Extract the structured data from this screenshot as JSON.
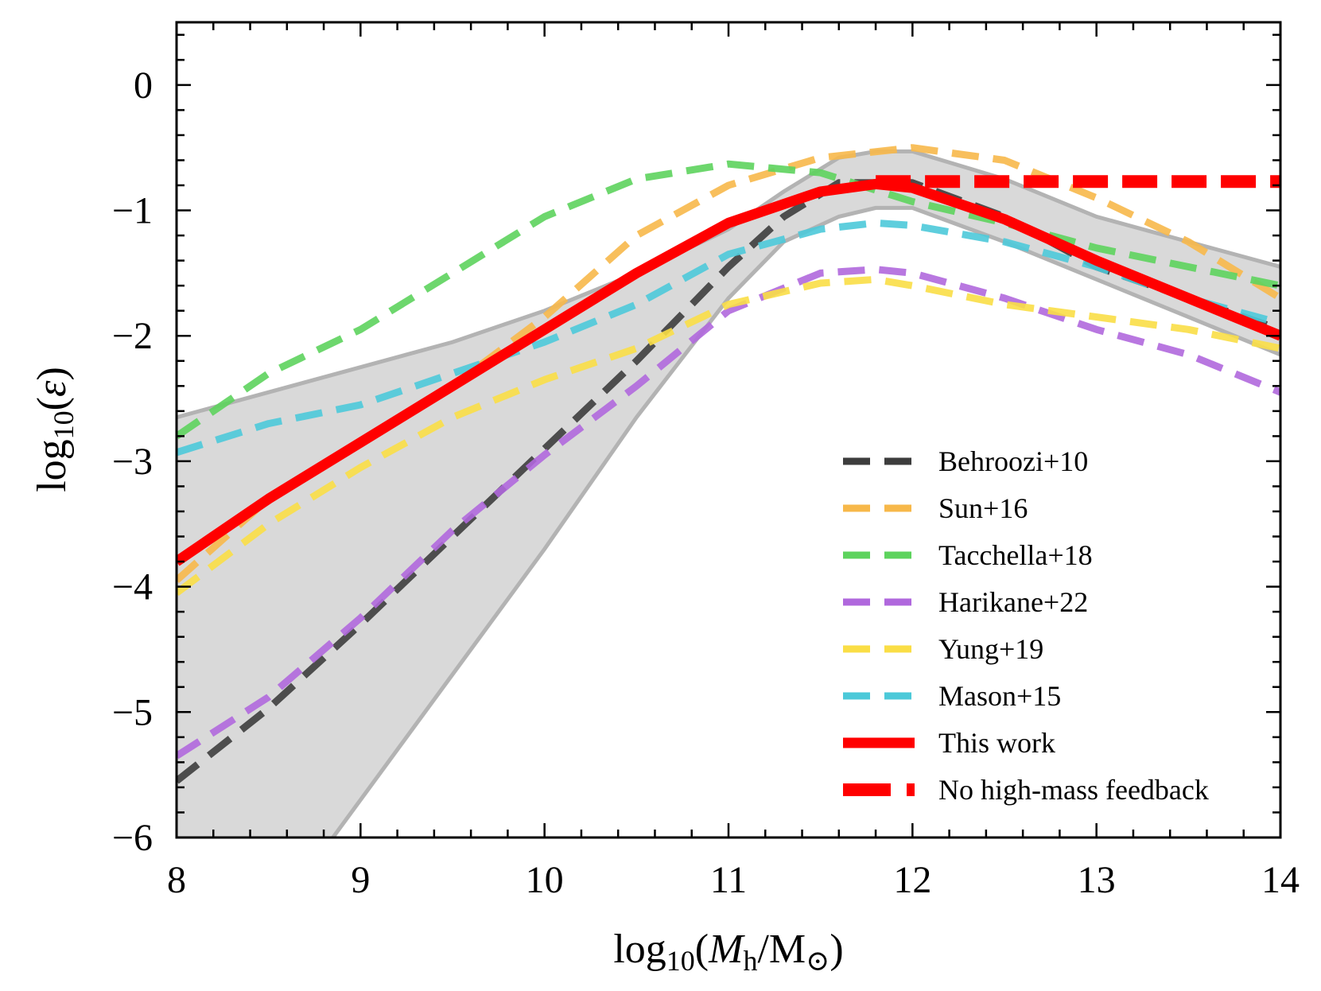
{
  "chart_data": {
    "type": "line",
    "xlabel": "log10(Mh/M⊙)",
    "ylabel": "log10(ε)",
    "xlim": [
      8,
      14
    ],
    "ylim": [
      -6,
      0.5
    ],
    "x_ticks": [
      8,
      9,
      10,
      11,
      12,
      13,
      14
    ],
    "y_ticks": [
      0,
      -1,
      -2,
      -3,
      -4,
      -5,
      -6
    ],
    "x_tick_labels": [
      "8",
      "9",
      "10",
      "11",
      "12",
      "13",
      "14"
    ],
    "y_tick_labels": [
      "0",
      "−1",
      "−2",
      "−3",
      "−4",
      "−5",
      "−6"
    ],
    "legend_position": "lower-right",
    "band": {
      "color": "#d9d9d9",
      "upper": [
        [
          8,
          -2.65
        ],
        [
          8.5,
          -2.45
        ],
        [
          9,
          -2.25
        ],
        [
          9.5,
          -2.05
        ],
        [
          10,
          -1.8
        ],
        [
          10.5,
          -1.5
        ],
        [
          11,
          -1.15
        ],
        [
          11.3,
          -0.85
        ],
        [
          11.6,
          -0.58
        ],
        [
          11.8,
          -0.53
        ],
        [
          12.0,
          -0.53
        ],
        [
          12.5,
          -0.75
        ],
        [
          13,
          -1.05
        ],
        [
          13.5,
          -1.25
        ],
        [
          14,
          -1.45
        ]
      ],
      "lower": [
        [
          8.85,
          -6.0
        ],
        [
          9.5,
          -4.7
        ],
        [
          10,
          -3.7
        ],
        [
          10.5,
          -2.65
        ],
        [
          11,
          -1.7
        ],
        [
          11.3,
          -1.25
        ],
        [
          11.6,
          -1.05
        ],
        [
          11.8,
          -0.98
        ],
        [
          12.0,
          -0.98
        ],
        [
          12.5,
          -1.25
        ],
        [
          13,
          -1.55
        ],
        [
          13.5,
          -1.85
        ],
        [
          14,
          -2.15
        ]
      ]
    },
    "series": [
      {
        "name": "Behroozi+10",
        "color": "#3d3d3d",
        "style": "dashed",
        "points": [
          [
            8,
            -5.55
          ],
          [
            8.5,
            -4.97
          ],
          [
            9,
            -4.3
          ],
          [
            9.5,
            -3.6
          ],
          [
            10,
            -2.9
          ],
          [
            10.5,
            -2.2
          ],
          [
            11,
            -1.45
          ],
          [
            11.3,
            -1.05
          ],
          [
            11.6,
            -0.78
          ],
          [
            12,
            -0.78
          ],
          [
            12.5,
            -1.05
          ],
          [
            13,
            -1.45
          ],
          [
            13.5,
            -1.7
          ],
          [
            14,
            -1.95
          ]
        ]
      },
      {
        "name": "Sun+16",
        "color": "#f7b84a",
        "style": "dashed",
        "points": [
          [
            8,
            -3.95
          ],
          [
            8.5,
            -3.3
          ],
          [
            9,
            -2.85
          ],
          [
            9.5,
            -2.4
          ],
          [
            10,
            -1.85
          ],
          [
            10.5,
            -1.2
          ],
          [
            11,
            -0.8
          ],
          [
            11.5,
            -0.58
          ],
          [
            12,
            -0.5
          ],
          [
            12.5,
            -0.6
          ],
          [
            13,
            -0.9
          ],
          [
            13.5,
            -1.25
          ],
          [
            14,
            -1.7
          ]
        ]
      },
      {
        "name": "Tacchella+18",
        "color": "#5dd35d",
        "style": "dashed",
        "points": [
          [
            8,
            -2.8
          ],
          [
            8.5,
            -2.3
          ],
          [
            9,
            -1.95
          ],
          [
            9.5,
            -1.5
          ],
          [
            10,
            -1.05
          ],
          [
            10.5,
            -0.75
          ],
          [
            11,
            -0.63
          ],
          [
            11.5,
            -0.7
          ],
          [
            12,
            -0.93
          ],
          [
            12.5,
            -1.1
          ],
          [
            13,
            -1.3
          ],
          [
            13.5,
            -1.45
          ],
          [
            14,
            -1.6
          ]
        ]
      },
      {
        "name": "Harikane+22",
        "color": "#b068dd",
        "style": "dashed",
        "points": [
          [
            8,
            -5.35
          ],
          [
            8.5,
            -4.88
          ],
          [
            9,
            -4.25
          ],
          [
            9.5,
            -3.55
          ],
          [
            10,
            -2.95
          ],
          [
            10.5,
            -2.4
          ],
          [
            11,
            -1.8
          ],
          [
            11.5,
            -1.5
          ],
          [
            11.8,
            -1.47
          ],
          [
            12,
            -1.5
          ],
          [
            12.5,
            -1.7
          ],
          [
            13,
            -1.95
          ],
          [
            13.5,
            -2.15
          ],
          [
            14,
            -2.45
          ]
        ]
      },
      {
        "name": "Yung+19",
        "color": "#fade46",
        "style": "dashed",
        "points": [
          [
            8,
            -4.05
          ],
          [
            8.5,
            -3.5
          ],
          [
            9,
            -3.05
          ],
          [
            9.5,
            -2.65
          ],
          [
            10,
            -2.35
          ],
          [
            10.5,
            -2.1
          ],
          [
            11,
            -1.75
          ],
          [
            11.5,
            -1.58
          ],
          [
            11.8,
            -1.55
          ],
          [
            12,
            -1.6
          ],
          [
            12.5,
            -1.75
          ],
          [
            13,
            -1.85
          ],
          [
            13.5,
            -1.95
          ],
          [
            14,
            -2.1
          ]
        ]
      },
      {
        "name": "Mason+15",
        "color": "#4cc9d9",
        "style": "dashed",
        "points": [
          [
            8,
            -2.93
          ],
          [
            8.5,
            -2.7
          ],
          [
            9,
            -2.55
          ],
          [
            9.5,
            -2.3
          ],
          [
            10,
            -2.05
          ],
          [
            10.5,
            -1.75
          ],
          [
            11,
            -1.35
          ],
          [
            11.5,
            -1.15
          ],
          [
            11.8,
            -1.1
          ],
          [
            12,
            -1.12
          ],
          [
            12.5,
            -1.25
          ],
          [
            13,
            -1.45
          ],
          [
            13.5,
            -1.7
          ],
          [
            14,
            -1.9
          ]
        ]
      },
      {
        "name": "This work",
        "color": "#ff0000",
        "style": "solid",
        "points": [
          [
            8,
            -3.8
          ],
          [
            8.5,
            -3.3
          ],
          [
            9,
            -2.85
          ],
          [
            9.5,
            -2.4
          ],
          [
            10,
            -1.95
          ],
          [
            10.5,
            -1.5
          ],
          [
            11,
            -1.1
          ],
          [
            11.5,
            -0.85
          ],
          [
            11.8,
            -0.79
          ],
          [
            12,
            -0.82
          ],
          [
            12.5,
            -1.07
          ],
          [
            13,
            -1.4
          ],
          [
            13.5,
            -1.7
          ],
          [
            14,
            -2.0
          ]
        ]
      },
      {
        "name": "No high-mass feedback",
        "color": "#ff0000",
        "style": "dashed-thick",
        "points": [
          [
            11.8,
            -0.77
          ],
          [
            14,
            -0.77
          ]
        ]
      }
    ]
  }
}
